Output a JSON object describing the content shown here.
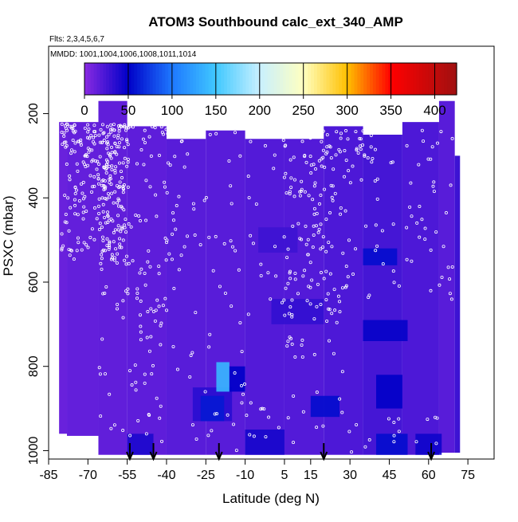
{
  "chart_data": {
    "type": "heatmap",
    "title": "ATOM3 Southbound calc_ext_340_AMP",
    "subtitle_flights": "Flts: 2,3,4,5,6,7",
    "subtitle_dates": "MMDD: 1001,1004,1006,1008,1011,1014",
    "xlabel": "Latitude (deg N)",
    "ylabel": "PSXC (mbar)",
    "xlim": [
      -85,
      85
    ],
    "ylim": [
      1020,
      40
    ],
    "xticks": [
      -85,
      -70,
      -55,
      -40,
      -25,
      -10,
      5,
      15,
      30,
      45,
      60,
      75
    ],
    "yticks": [
      200,
      400,
      600,
      800,
      1000
    ],
    "colorbar": {
      "min": 0,
      "max": 425,
      "ticks": [
        0,
        50,
        100,
        150,
        200,
        250,
        300,
        350,
        400
      ],
      "stops": [
        {
          "v": 0,
          "c": "#8a2be2"
        },
        {
          "v": 50,
          "c": "#0000c8"
        },
        {
          "v": 100,
          "c": "#1e78ff"
        },
        {
          "v": 150,
          "c": "#40c8ff"
        },
        {
          "v": 200,
          "c": "#c8f0ff"
        },
        {
          "v": 250,
          "c": "#ffffc0"
        },
        {
          "v": 300,
          "c": "#ffc000"
        },
        {
          "v": 350,
          "c": "#ff0000"
        },
        {
          "v": 425,
          "c": "#a01010"
        }
      ]
    },
    "coverage_columns": [
      {
        "lat": [
          -81,
          -78
        ],
        "p": [
          220,
          960
        ],
        "v": 12
      },
      {
        "lat": [
          -78,
          -66
        ],
        "p": [
          220,
          965
        ],
        "v": 14
      },
      {
        "lat": [
          -66,
          -55
        ],
        "p": [
          170,
          1010
        ],
        "v": 15
      },
      {
        "lat": [
          -55,
          -40
        ],
        "p": [
          230,
          1010
        ],
        "v": 16
      },
      {
        "lat": [
          -40,
          -25
        ],
        "p": [
          260,
          1010
        ],
        "v": 18
      },
      {
        "lat": [
          -25,
          -10
        ],
        "p": [
          240,
          1010
        ],
        "v": 18
      },
      {
        "lat": [
          -10,
          5
        ],
        "p": [
          260,
          1010
        ],
        "v": 20
      },
      {
        "lat": [
          5,
          20
        ],
        "p": [
          260,
          1010
        ],
        "v": 20
      },
      {
        "lat": [
          20,
          35
        ],
        "p": [
          230,
          1010
        ],
        "v": 22
      },
      {
        "lat": [
          35,
          50
        ],
        "p": [
          250,
          1010
        ],
        "v": 25
      },
      {
        "lat": [
          50,
          64
        ],
        "p": [
          220,
          1010
        ],
        "v": 22
      },
      {
        "lat": [
          64,
          70
        ],
        "p": [
          170,
          1005
        ],
        "v": 18
      },
      {
        "lat": [
          70,
          72
        ],
        "p": [
          300,
          1005
        ],
        "v": 28
      }
    ],
    "enhanced_cells": [
      {
        "lat": [
          -30,
          -15
        ],
        "p": [
          850,
          930
        ],
        "v": 35
      },
      {
        "lat": [
          -27,
          -18
        ],
        "p": [
          870,
          930
        ],
        "v": 60
      },
      {
        "lat": [
          -21,
          -16
        ],
        "p": [
          790,
          860
        ],
        "v": 140
      },
      {
        "lat": [
          -16,
          -10
        ],
        "p": [
          800,
          860
        ],
        "v": 50
      },
      {
        "lat": [
          15,
          26
        ],
        "p": [
          870,
          920
        ],
        "v": 55
      },
      {
        "lat": [
          35,
          48
        ],
        "p": [
          520,
          560
        ],
        "v": 55
      },
      {
        "lat": [
          35,
          52
        ],
        "p": [
          690,
          740
        ],
        "v": 48
      },
      {
        "lat": [
          40,
          50
        ],
        "p": [
          820,
          900
        ],
        "v": 50
      },
      {
        "lat": [
          -55,
          -45
        ],
        "p": [
          960,
          1010
        ],
        "v": 40
      },
      {
        "lat": [
          -10,
          5
        ],
        "p": [
          950,
          1010
        ],
        "v": 42
      },
      {
        "lat": [
          40,
          52
        ],
        "p": [
          960,
          1010
        ],
        "v": 55
      },
      {
        "lat": [
          55,
          65
        ],
        "p": [
          960,
          1010
        ],
        "v": 45
      },
      {
        "lat": [
          0,
          20
        ],
        "p": [
          640,
          700
        ],
        "v": 32
      },
      {
        "lat": [
          -5,
          10
        ],
        "p": [
          470,
          530
        ],
        "v": 28
      }
    ],
    "sample_points_note": "white open circles mark individual observations",
    "arrows_lat": [
      -54,
      -45,
      -20,
      20,
      61
    ]
  }
}
